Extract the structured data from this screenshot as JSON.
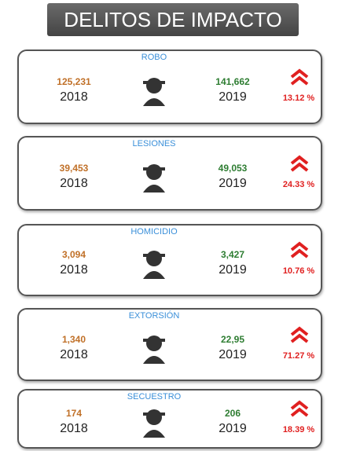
{
  "header": {
    "title": "DELITOS DE IMPACTO"
  },
  "cards": [
    {
      "title": "ROBO",
      "value_2018": "125,231",
      "year_2018": "2018",
      "value_2019": "141,662",
      "year_2019": "2019",
      "change": "13.12 %"
    },
    {
      "title": "LESIONES",
      "value_2018": "39,453",
      "year_2018": "2018",
      "value_2019": "49,053",
      "year_2019": "2019",
      "change": "24.33 %"
    },
    {
      "title": "HOMICIDIO",
      "value_2018": "3,094",
      "year_2018": "2018",
      "value_2019": "3,427",
      "year_2019": "2019",
      "change": "10.76 %"
    },
    {
      "title": "EXTORSIÓN",
      "value_2018": "1,340",
      "year_2018": "2018",
      "value_2019": "22,95",
      "year_2019": "2019",
      "change": "71.27 %"
    },
    {
      "title": "SECUESTRO",
      "value_2018": "174",
      "year_2018": "2018",
      "value_2019": "206",
      "year_2019": "2019",
      "change": "18.39 %"
    }
  ]
}
